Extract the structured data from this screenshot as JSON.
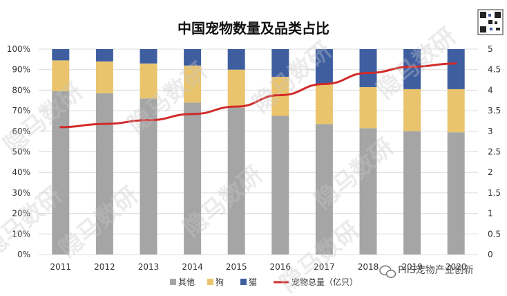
{
  "chart_data": {
    "type": "bar",
    "stacked": true,
    "title": "中国宠物数量及品类占比",
    "categories": [
      "2011",
      "2012",
      "2013",
      "2014",
      "2015",
      "2016",
      "2017",
      "2018",
      "2019",
      "2020"
    ],
    "series": [
      {
        "name": "其他",
        "values": [
          79.5,
          78.5,
          76,
          74,
          71.5,
          67.5,
          63.5,
          61.5,
          60,
          59.5
        ],
        "color": "#a5a5a5"
      },
      {
        "name": "狗",
        "values": [
          15,
          15.5,
          17,
          18,
          18.5,
          19,
          19.5,
          20,
          20.5,
          21
        ],
        "color": "#e9c46d"
      },
      {
        "name": "猫",
        "values": [
          5.5,
          6,
          7,
          8,
          10,
          13.5,
          17,
          18.5,
          19.5,
          19.5
        ],
        "color": "#3e5ea0"
      }
    ],
    "line_series": {
      "name": "宠物总量（亿只）",
      "values": [
        3.1,
        3.18,
        3.27,
        3.42,
        3.6,
        3.88,
        4.15,
        4.42,
        4.57,
        4.65
      ],
      "color": "#d12a2a"
    },
    "yleft": {
      "min": 0,
      "max": 100,
      "step": 10,
      "ticks": [
        "0%",
        "10%",
        "20%",
        "30%",
        "40%",
        "50%",
        "60%",
        "70%",
        "80%",
        "90%",
        "100%"
      ]
    },
    "yright": {
      "min": 0,
      "max": 5,
      "ticks": [
        "0",
        "0.5",
        "1",
        "1.5",
        "2",
        "2.5",
        "3",
        "3.5",
        "4",
        "4.5",
        "5"
      ]
    },
    "xlabel": "",
    "ylabel": "",
    "grid": true,
    "legend_position": "bottom"
  },
  "watermark_text": "隐马数研",
  "wechat_label": "PIIS宠物产业创新",
  "qr_icon": "qr-code-icon",
  "wechat_icon": "wechat-icon"
}
